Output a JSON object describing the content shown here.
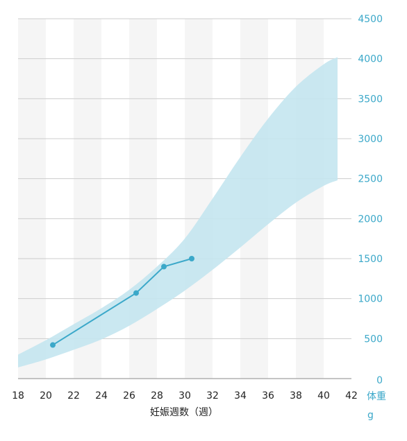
{
  "chart_data": {
    "type": "line",
    "xlabel": "妊娠週数（週）",
    "ylabel": "体重",
    "yunit": "g",
    "xlim": [
      18,
      42
    ],
    "ylim": [
      0,
      4500
    ],
    "xticks": [
      "18",
      "20",
      "22",
      "24",
      "26",
      "28",
      "30",
      "32",
      "34",
      "36",
      "38",
      "40",
      "42"
    ],
    "yticks": [
      "0",
      "500",
      "1000",
      "1500",
      "2000",
      "2500",
      "3000",
      "3500",
      "4000",
      "4500"
    ],
    "grid": true,
    "band": {
      "x": [
        18,
        20,
        22,
        24,
        26,
        28,
        30,
        32,
        34,
        36,
        38,
        40,
        41
      ],
      "upper": [
        300,
        480,
        680,
        880,
        1110,
        1400,
        1750,
        2250,
        2770,
        3250,
        3650,
        3930,
        4020
      ],
      "lower": [
        140,
        240,
        360,
        490,
        660,
        870,
        1100,
        1360,
        1640,
        1930,
        2200,
        2410,
        2480
      ]
    },
    "series": [
      {
        "x": [
          20.5,
          26.5,
          28.5,
          30.5
        ],
        "values": [
          420,
          1070,
          1400,
          1500
        ]
      }
    ],
    "colors": {
      "band": "#c4e6ef",
      "line": "#3ba8c9",
      "grid": "#cccccc",
      "stripe": "#f5f5f5",
      "axis": "#b0b0b0"
    }
  }
}
